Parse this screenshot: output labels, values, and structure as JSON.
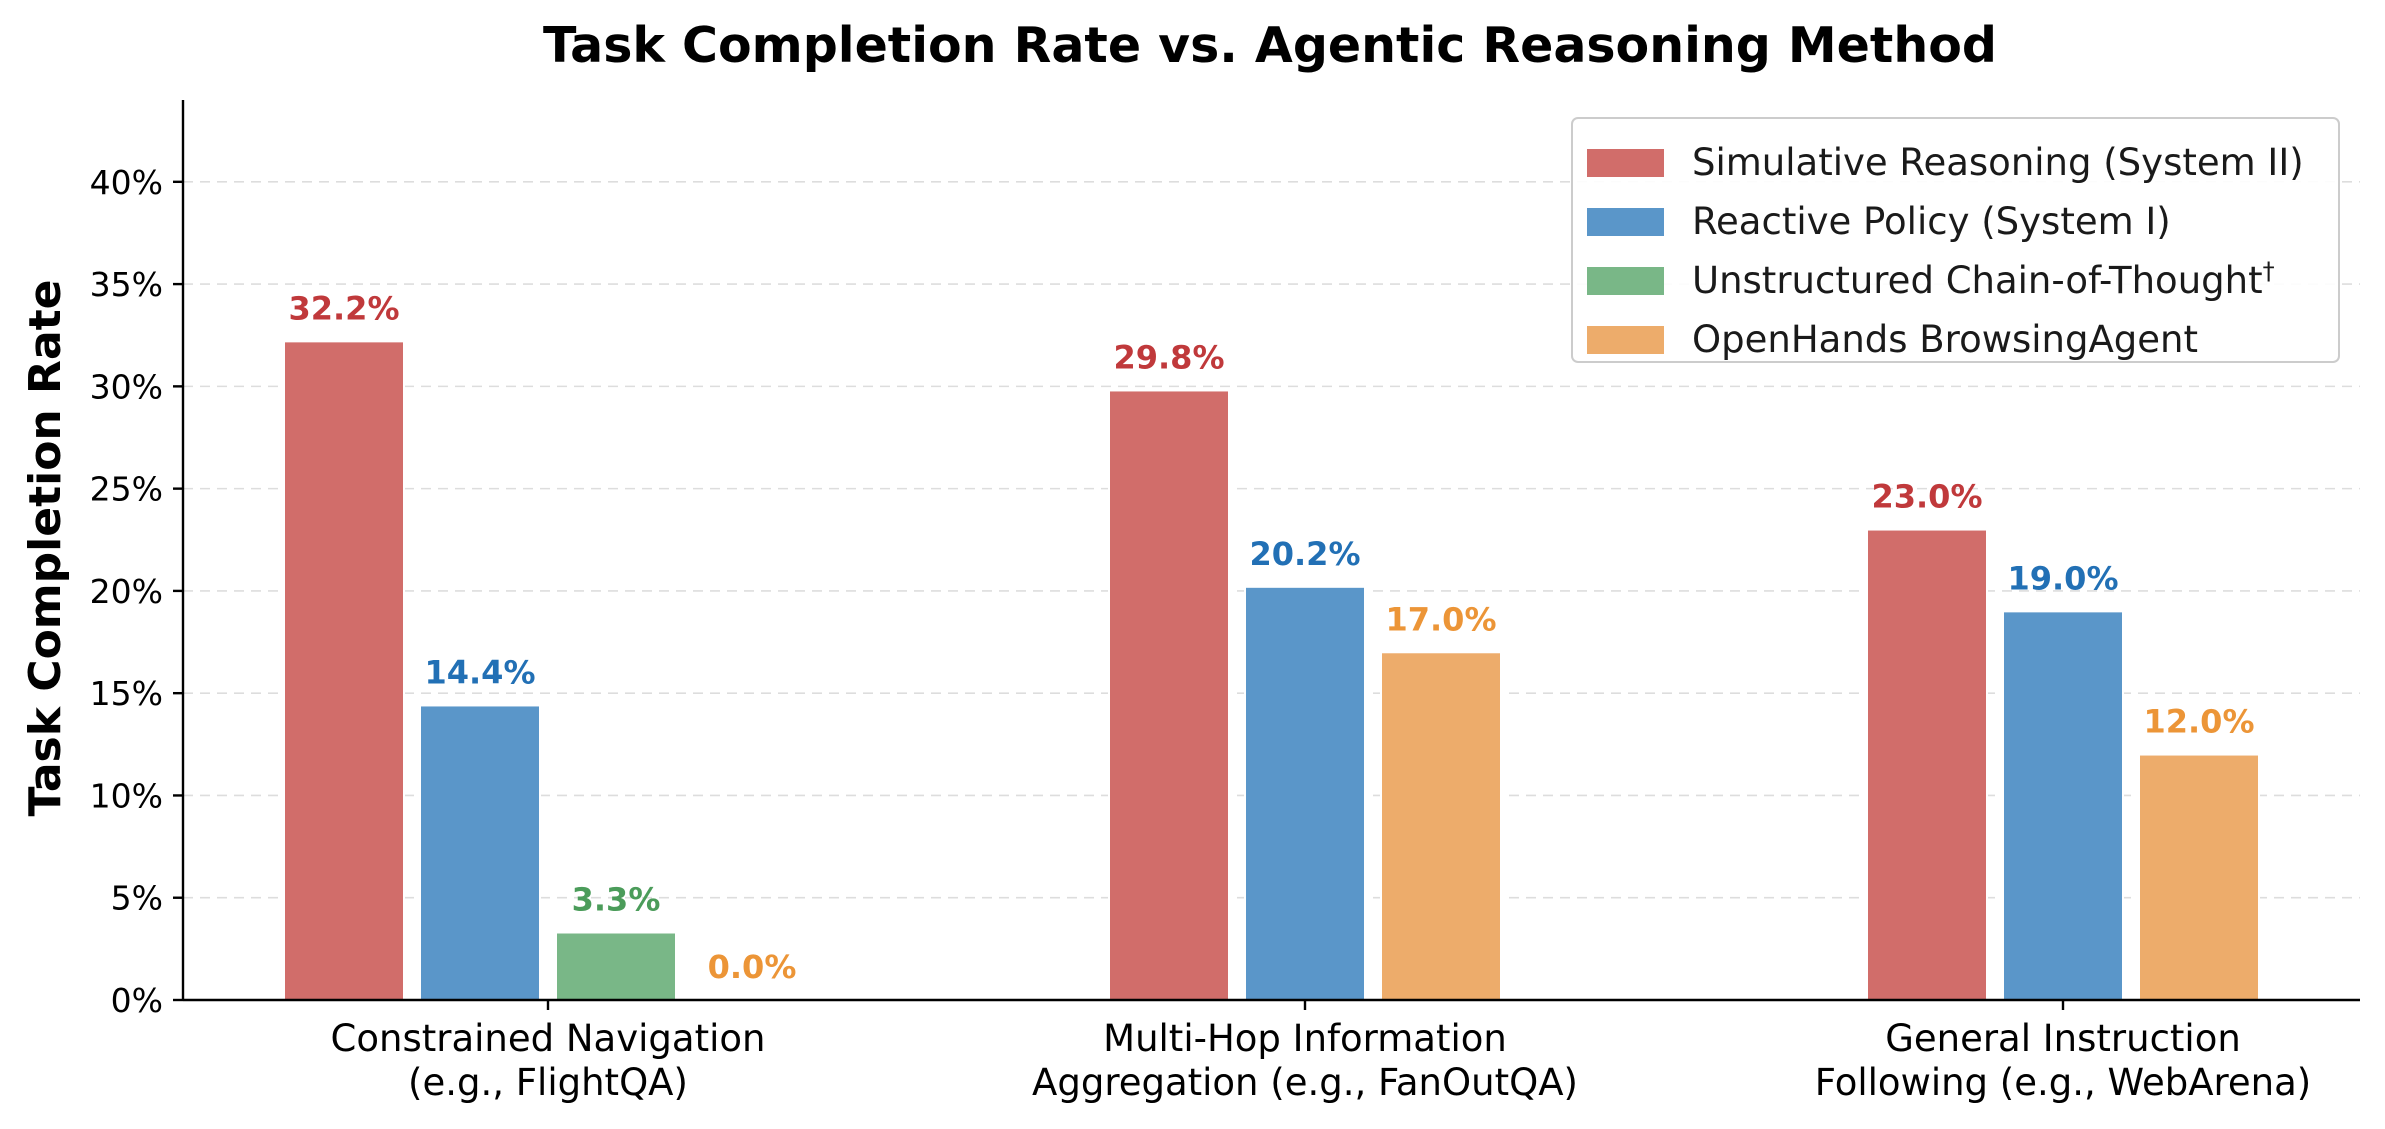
{
  "chart_data": {
    "type": "bar",
    "title": "Task Completion Rate vs. Agentic Reasoning Method",
    "ylabel": "Task Completion Rate",
    "xlabel": "",
    "ylim": [
      0,
      44
    ],
    "y_ticks": [
      "0%",
      "5%",
      "10%",
      "15%",
      "20%",
      "25%",
      "30%",
      "35%",
      "40%"
    ],
    "y_tick_values": [
      0,
      5,
      10,
      15,
      20,
      25,
      30,
      35,
      40
    ],
    "grid": true,
    "legend_position": "top-right",
    "categories": [
      [
        "Constrained Navigation",
        "(e.g., FlightQA)"
      ],
      [
        "Multi-Hop Information",
        "Aggregation (e.g., FanOutQA)"
      ],
      [
        "General Instruction",
        "Following (e.g., WebArena)"
      ]
    ],
    "series": [
      {
        "name": "Simulative Reasoning (System II)",
        "color": "#d16d6a",
        "label_color": "#c0393b",
        "values": [
          32.2,
          29.8,
          23.0
        ],
        "labels": [
          "32.2%",
          "29.8%",
          "23.0%"
        ]
      },
      {
        "name": "Reactive Policy (System I)",
        "color": "#5a96c9",
        "label_color": "#2270b5",
        "values": [
          14.4,
          20.2,
          19.0
        ],
        "labels": [
          "14.4%",
          "20.2%",
          "19.0%"
        ]
      },
      {
        "name": "Unstructured Chain-of-Thought",
        "name_sup": "†",
        "color": "#79b787",
        "label_color": "#4b9c5a",
        "values": [
          3.3,
          null,
          null
        ],
        "labels": [
          "3.3%",
          null,
          null
        ]
      },
      {
        "name": "OpenHands BrowsingAgent",
        "color": "#edac6b",
        "label_color": "#ec9537",
        "values": [
          0.0,
          17.0,
          12.0
        ],
        "labels": [
          "0.0%",
          "17.0%",
          "12.0%"
        ]
      }
    ]
  }
}
